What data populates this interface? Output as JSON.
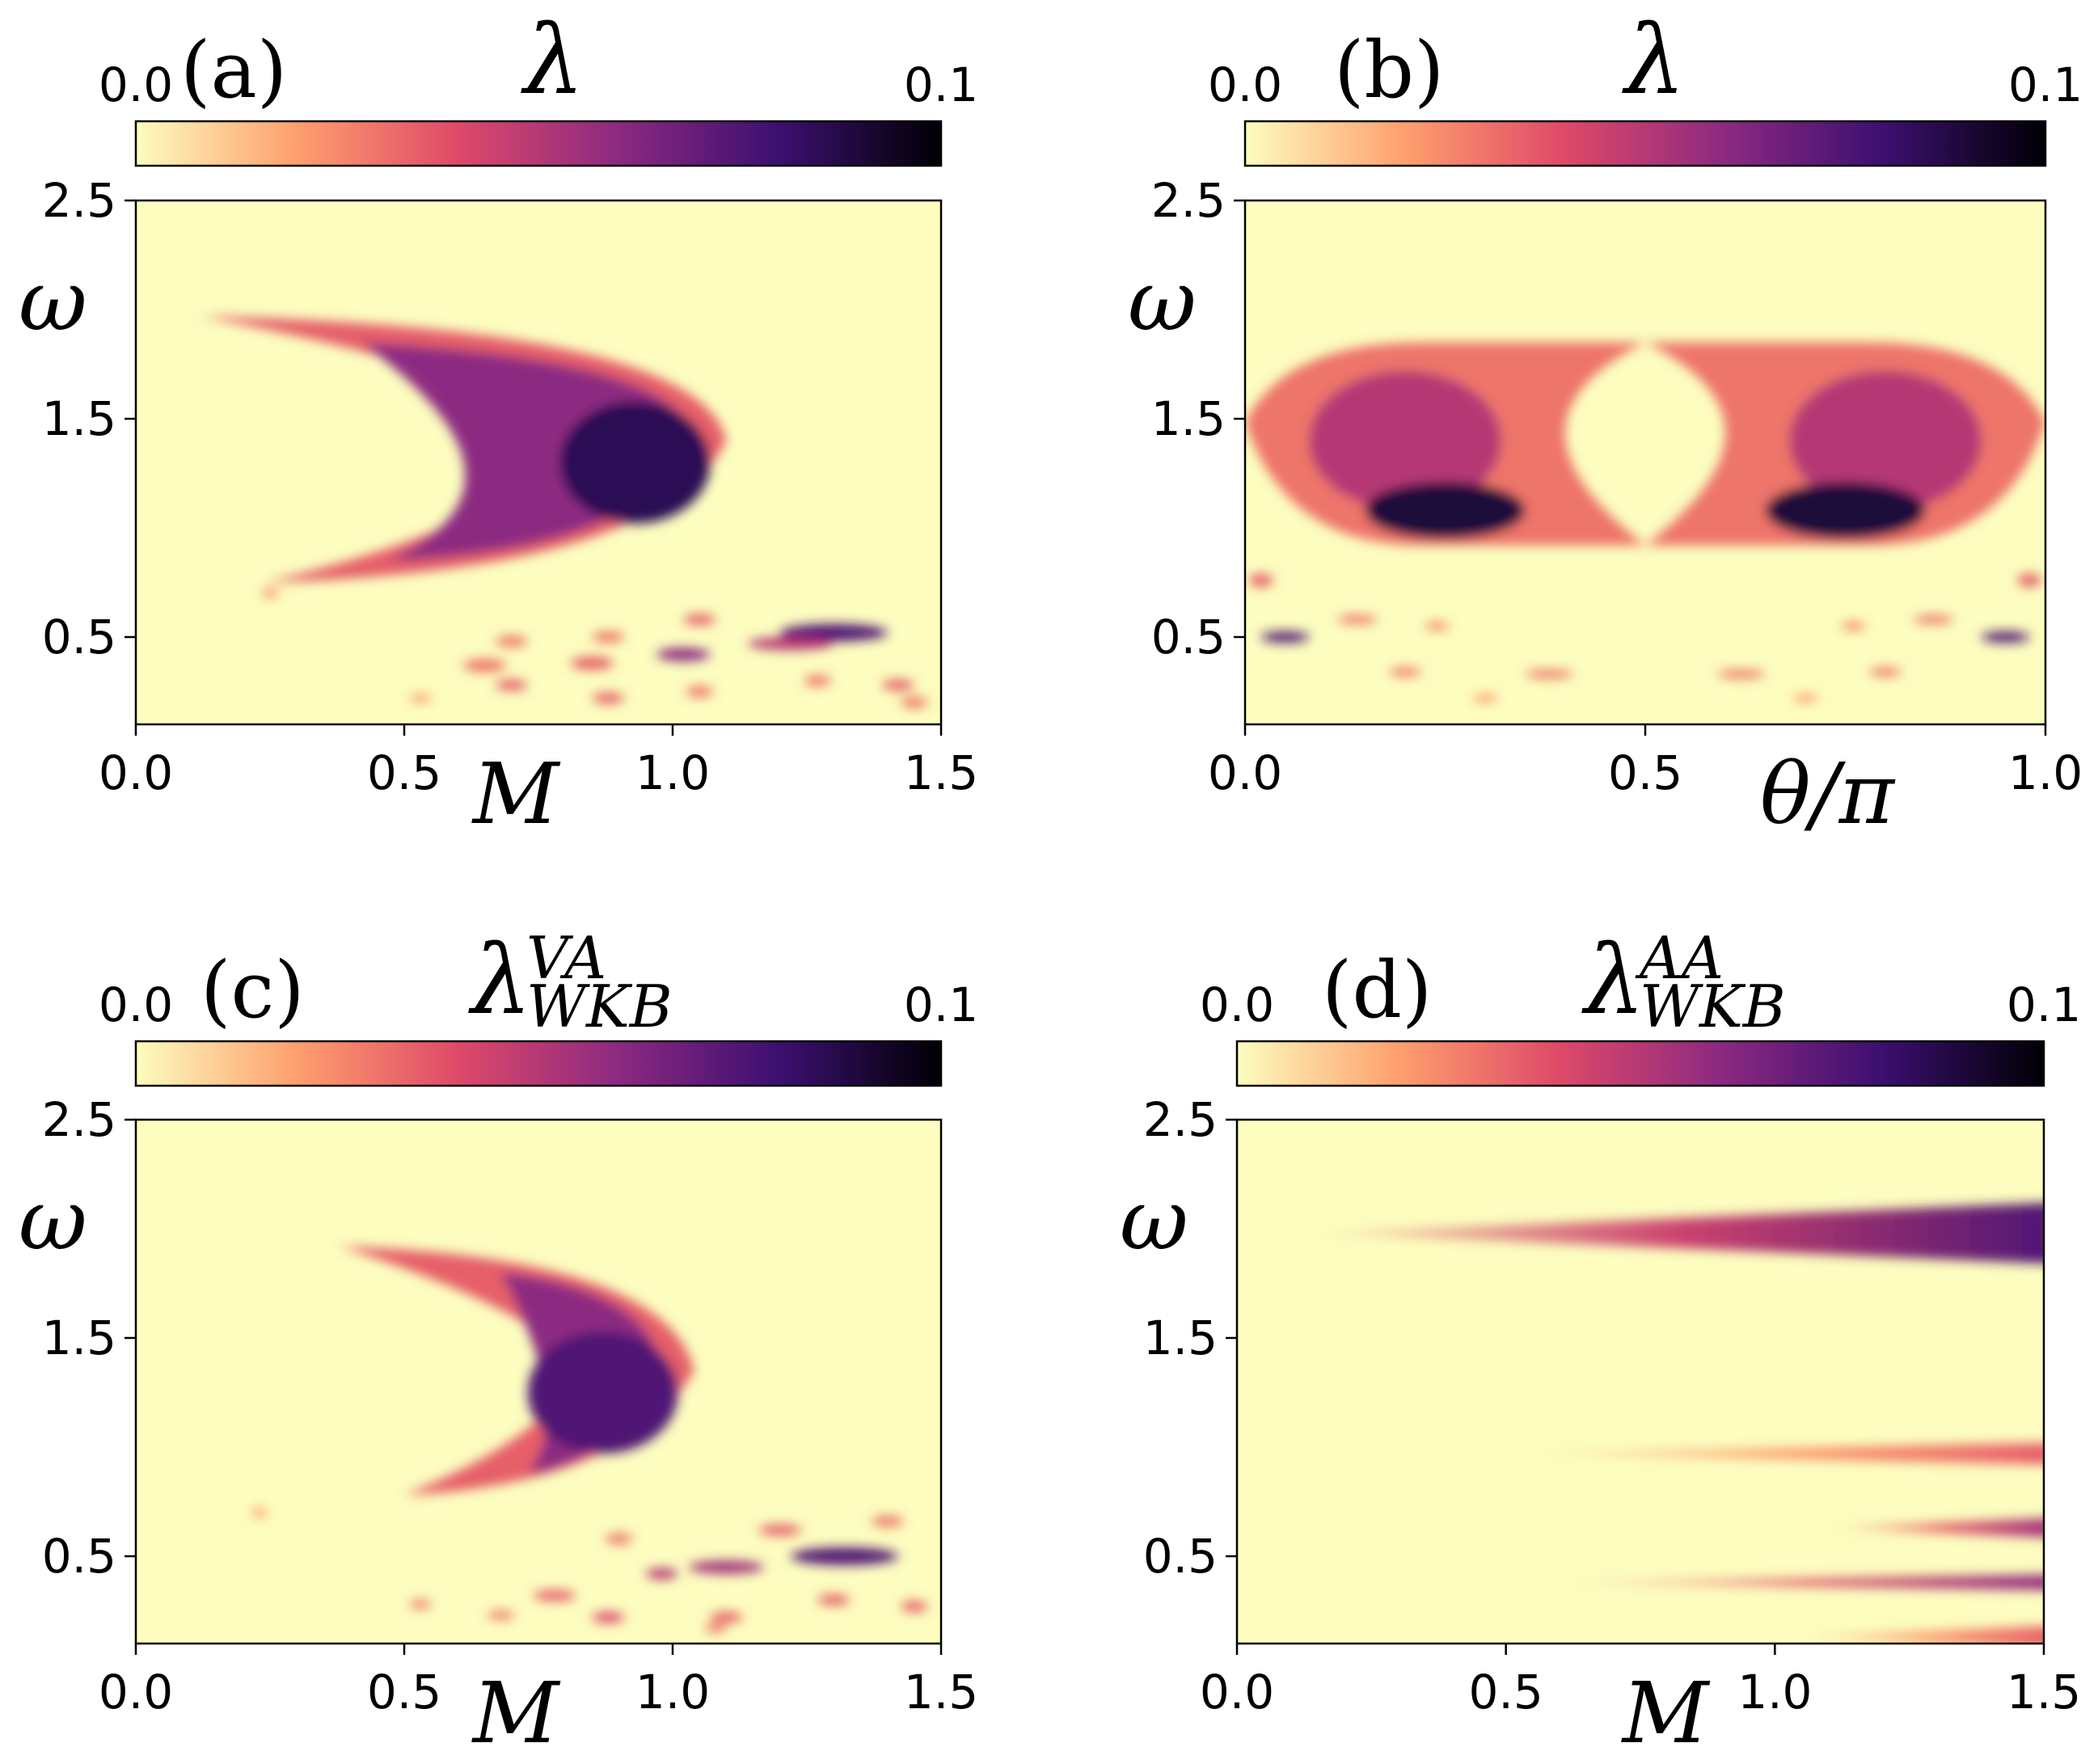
{
  "figure": {
    "colormap": "magma_r",
    "colors": {
      "low": "#fcfdbf",
      "mid_low": "#fe9f6d",
      "mid": "#de4968",
      "mid_high": "#8c2981",
      "high": "#3b0f70",
      "top": "#000004"
    }
  },
  "chart_data": [
    {
      "id": "a",
      "type": "heatmap",
      "panel_label": "(a)",
      "colorbar": {
        "title": "λ",
        "subscript": "",
        "superscript": "",
        "min": 0.0,
        "max": 0.1,
        "min_label": "0.0",
        "max_label": "0.1"
      },
      "xlabel": "M",
      "ylabel": "ω",
      "xlim": [
        0.0,
        1.5
      ],
      "ylim": [
        0.1,
        2.5
      ],
      "xticks": [
        0.0,
        0.5,
        1.0,
        1.5
      ],
      "xtick_labels": [
        "0.0",
        "0.5",
        "1.0",
        "1.5"
      ],
      "yticks": [
        0.5,
        1.5,
        2.5
      ],
      "ytick_labels": [
        "0.5",
        "1.5",
        "2.5"
      ],
      "features": [
        {
          "kind": "crescent",
          "tip_x": 0.12,
          "tip_y_top": 1.97,
          "tip_y_bottom": 0.75,
          "apex_x": 1.1,
          "apex_y": 1.4,
          "inner_apex_x": 0.78,
          "peak": 0.085
        },
        {
          "kind": "blob",
          "x": 1.3,
          "y": 0.52,
          "w": 0.2,
          "h": 0.04,
          "value": 0.075
        },
        {
          "kind": "blob",
          "x": 1.22,
          "y": 0.47,
          "w": 0.16,
          "h": 0.03,
          "value": 0.05
        },
        {
          "kind": "blob",
          "x": 1.02,
          "y": 0.42,
          "w": 0.1,
          "h": 0.03,
          "value": 0.06
        },
        {
          "kind": "blob",
          "x": 0.85,
          "y": 0.38,
          "w": 0.08,
          "h": 0.03,
          "value": 0.035
        },
        {
          "kind": "blob",
          "x": 0.65,
          "y": 0.37,
          "w": 0.08,
          "h": 0.03,
          "value": 0.03
        },
        {
          "kind": "blob",
          "x": 0.7,
          "y": 0.48,
          "w": 0.06,
          "h": 0.025,
          "value": 0.03
        },
        {
          "kind": "blob",
          "x": 0.88,
          "y": 0.5,
          "w": 0.06,
          "h": 0.025,
          "value": 0.03
        },
        {
          "kind": "blob",
          "x": 1.05,
          "y": 0.58,
          "w": 0.06,
          "h": 0.025,
          "value": 0.035
        },
        {
          "kind": "blob",
          "x": 0.7,
          "y": 0.28,
          "w": 0.06,
          "h": 0.025,
          "value": 0.035
        },
        {
          "kind": "blob",
          "x": 0.88,
          "y": 0.22,
          "w": 0.06,
          "h": 0.025,
          "value": 0.035
        },
        {
          "kind": "blob",
          "x": 1.05,
          "y": 0.25,
          "w": 0.05,
          "h": 0.025,
          "value": 0.03
        },
        {
          "kind": "blob",
          "x": 1.27,
          "y": 0.3,
          "w": 0.05,
          "h": 0.025,
          "value": 0.03
        },
        {
          "kind": "blob",
          "x": 1.42,
          "y": 0.28,
          "w": 0.06,
          "h": 0.025,
          "value": 0.035
        },
        {
          "kind": "blob",
          "x": 1.45,
          "y": 0.2,
          "w": 0.05,
          "h": 0.025,
          "value": 0.03
        },
        {
          "kind": "blob",
          "x": 0.53,
          "y": 0.22,
          "w": 0.04,
          "h": 0.02,
          "value": 0.02
        },
        {
          "kind": "blob",
          "x": 0.25,
          "y": 0.7,
          "w": 0.03,
          "h": 0.02,
          "value": 0.025
        }
      ]
    },
    {
      "id": "b",
      "type": "heatmap",
      "panel_label": "(b)",
      "colorbar": {
        "title": "λ",
        "subscript": "",
        "superscript": "",
        "min": 0.0,
        "max": 0.1,
        "min_label": "0.0",
        "max_label": "0.1"
      },
      "xlabel": "θ/π",
      "ylabel": "ω",
      "xlim": [
        0.0,
        1.0
      ],
      "ylim": [
        0.1,
        2.5
      ],
      "xticks": [
        0.0,
        0.5,
        1.0
      ],
      "xtick_labels": [
        "0.0",
        "0.5",
        "1.0"
      ],
      "yticks": [
        0.5,
        1.5,
        2.5
      ],
      "ytick_labels": [
        "0.5",
        "1.5",
        "2.5"
      ],
      "features": [
        {
          "kind": "lobe",
          "side": "left",
          "outer_x": 0.0,
          "inner_x": 0.5,
          "y_top": 1.85,
          "y_bottom": 0.92,
          "peak_x": 0.25,
          "peak_y": 1.08,
          "peak": 0.09
        },
        {
          "kind": "lobe",
          "side": "right",
          "outer_x": 1.0,
          "inner_x": 0.5,
          "y_top": 1.85,
          "y_bottom": 0.92,
          "peak_x": 0.75,
          "peak_y": 1.08,
          "peak": 0.09
        },
        {
          "kind": "blob",
          "x": 0.05,
          "y": 0.5,
          "w": 0.06,
          "h": 0.025,
          "value": 0.075
        },
        {
          "kind": "blob",
          "x": 0.95,
          "y": 0.5,
          "w": 0.06,
          "h": 0.025,
          "value": 0.075
        },
        {
          "kind": "blob",
          "x": 0.02,
          "y": 0.76,
          "w": 0.03,
          "h": 0.03,
          "value": 0.035
        },
        {
          "kind": "blob",
          "x": 0.98,
          "y": 0.76,
          "w": 0.03,
          "h": 0.03,
          "value": 0.035
        },
        {
          "kind": "blob",
          "x": 0.14,
          "y": 0.58,
          "w": 0.05,
          "h": 0.02,
          "value": 0.03
        },
        {
          "kind": "blob",
          "x": 0.86,
          "y": 0.58,
          "w": 0.05,
          "h": 0.02,
          "value": 0.03
        },
        {
          "kind": "blob",
          "x": 0.24,
          "y": 0.55,
          "w": 0.03,
          "h": 0.02,
          "value": 0.025
        },
        {
          "kind": "blob",
          "x": 0.76,
          "y": 0.55,
          "w": 0.03,
          "h": 0.02,
          "value": 0.025
        },
        {
          "kind": "blob",
          "x": 0.2,
          "y": 0.34,
          "w": 0.04,
          "h": 0.02,
          "value": 0.03
        },
        {
          "kind": "blob",
          "x": 0.8,
          "y": 0.34,
          "w": 0.04,
          "h": 0.02,
          "value": 0.03
        },
        {
          "kind": "blob",
          "x": 0.38,
          "y": 0.33,
          "w": 0.06,
          "h": 0.02,
          "value": 0.03
        },
        {
          "kind": "blob",
          "x": 0.62,
          "y": 0.33,
          "w": 0.06,
          "h": 0.02,
          "value": 0.03
        },
        {
          "kind": "blob",
          "x": 0.3,
          "y": 0.22,
          "w": 0.03,
          "h": 0.02,
          "value": 0.02
        },
        {
          "kind": "blob",
          "x": 0.7,
          "y": 0.22,
          "w": 0.03,
          "h": 0.02,
          "value": 0.02
        }
      ]
    },
    {
      "id": "c",
      "type": "heatmap",
      "panel_label": "(c)",
      "colorbar": {
        "title": "λ",
        "subscript": "WKB",
        "superscript": "VA",
        "min": 0.0,
        "max": 0.1,
        "min_label": "0.0",
        "max_label": "0.1"
      },
      "xlabel": "M",
      "ylabel": "ω",
      "xlim": [
        0.0,
        1.5
      ],
      "ylim": [
        0.1,
        2.5
      ],
      "xticks": [
        0.0,
        0.5,
        1.0,
        1.5
      ],
      "xtick_labels": [
        "0.0",
        "0.5",
        "1.0",
        "1.5"
      ],
      "yticks": [
        0.5,
        1.5,
        2.5
      ],
      "ytick_labels": [
        "0.5",
        "1.5",
        "2.5"
      ],
      "features": [
        {
          "kind": "crescent",
          "tip_x": 0.38,
          "tip_y_top": 1.92,
          "tip_y_bottom": 0.78,
          "apex_x": 1.04,
          "apex_y": 1.35,
          "inner_apex_x": 0.82,
          "peak": 0.075
        },
        {
          "kind": "blob",
          "x": 1.32,
          "y": 0.5,
          "w": 0.2,
          "h": 0.04,
          "value": 0.075
        },
        {
          "kind": "blob",
          "x": 1.1,
          "y": 0.45,
          "w": 0.14,
          "h": 0.03,
          "value": 0.055
        },
        {
          "kind": "blob",
          "x": 0.98,
          "y": 0.42,
          "w": 0.06,
          "h": 0.025,
          "value": 0.05
        },
        {
          "kind": "blob",
          "x": 1.2,
          "y": 0.62,
          "w": 0.08,
          "h": 0.025,
          "value": 0.035
        },
        {
          "kind": "blob",
          "x": 1.4,
          "y": 0.66,
          "w": 0.06,
          "h": 0.025,
          "value": 0.03
        },
        {
          "kind": "blob",
          "x": 0.9,
          "y": 0.58,
          "w": 0.05,
          "h": 0.025,
          "value": 0.03
        },
        {
          "kind": "blob",
          "x": 0.78,
          "y": 0.32,
          "w": 0.08,
          "h": 0.025,
          "value": 0.035
        },
        {
          "kind": "blob",
          "x": 0.68,
          "y": 0.23,
          "w": 0.05,
          "h": 0.02,
          "value": 0.03
        },
        {
          "kind": "blob",
          "x": 0.88,
          "y": 0.22,
          "w": 0.06,
          "h": 0.025,
          "value": 0.04
        },
        {
          "kind": "blob",
          "x": 1.1,
          "y": 0.22,
          "w": 0.06,
          "h": 0.025,
          "value": 0.035
        },
        {
          "kind": "blob",
          "x": 1.3,
          "y": 0.3,
          "w": 0.06,
          "h": 0.025,
          "value": 0.035
        },
        {
          "kind": "blob",
          "x": 1.45,
          "y": 0.27,
          "w": 0.05,
          "h": 0.025,
          "value": 0.035
        },
        {
          "kind": "blob",
          "x": 1.08,
          "y": 0.17,
          "w": 0.04,
          "h": 0.02,
          "value": 0.03
        },
        {
          "kind": "blob",
          "x": 0.53,
          "y": 0.28,
          "w": 0.04,
          "h": 0.02,
          "value": 0.03
        },
        {
          "kind": "blob",
          "x": 0.23,
          "y": 0.7,
          "w": 0.03,
          "h": 0.02,
          "value": 0.02
        }
      ]
    },
    {
      "id": "d",
      "type": "heatmap",
      "panel_label": "(d)",
      "colorbar": {
        "title": "λ",
        "subscript": "WKB",
        "superscript": "AA",
        "min": 0.0,
        "max": 0.1,
        "min_label": "0.0",
        "max_label": "0.1"
      },
      "xlabel": "M",
      "ylabel": "ω",
      "xlim": [
        0.0,
        1.5
      ],
      "ylim": [
        0.1,
        2.5
      ],
      "xticks": [
        0.0,
        0.5,
        1.0,
        1.5
      ],
      "xtick_labels": [
        "0.0",
        "0.5",
        "1.0",
        "1.5"
      ],
      "yticks": [
        0.5,
        1.5,
        2.5
      ],
      "ytick_labels": [
        "0.5",
        "1.5",
        "2.5"
      ],
      "features": [
        {
          "kind": "band",
          "y": 1.98,
          "x_start": 0.15,
          "x_end": 1.5,
          "half_width_end": 0.14,
          "value_end": 0.075
        },
        {
          "kind": "band",
          "y": 0.97,
          "x_start": 0.55,
          "x_end": 1.5,
          "half_width_end": 0.05,
          "value_end": 0.035
        },
        {
          "kind": "band",
          "y": 0.63,
          "x_start": 1.1,
          "x_end": 1.5,
          "half_width_end": 0.045,
          "value_end": 0.055
        },
        {
          "kind": "band",
          "y": 0.38,
          "x_start": 0.6,
          "x_end": 1.5,
          "half_width_end": 0.035,
          "value_end": 0.06
        },
        {
          "kind": "band",
          "y": 0.13,
          "x_start": 1.05,
          "x_end": 1.5,
          "half_width_end": 0.05,
          "value_end": 0.035
        }
      ]
    }
  ]
}
